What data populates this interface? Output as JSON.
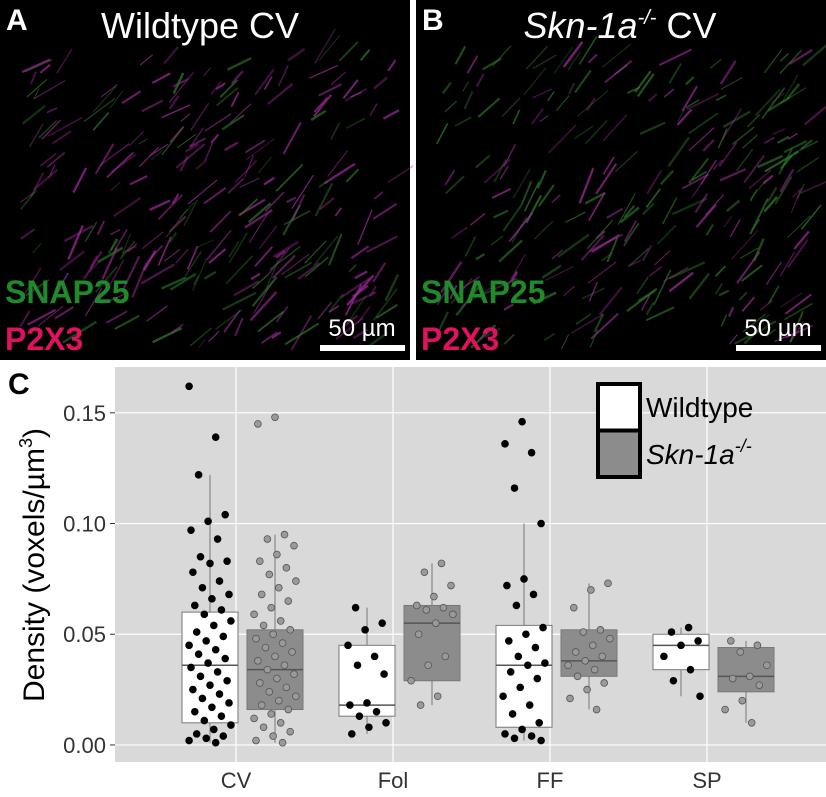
{
  "panels": [
    {
      "letter": "A",
      "title": "Wildtype CV",
      "marker1": "SNAP25",
      "marker2": "P2X3",
      "scale": "50 µm"
    },
    {
      "letter": "B",
      "title_italic": "Skn-1a",
      "title_sup": "-/-",
      "title_end": " CV",
      "marker1": "SNAP25",
      "marker2": "P2X3",
      "scale": "50 µm"
    }
  ],
  "chart_data": {
    "type": "box",
    "letter": "C",
    "y_label": "Density (voxels/µm",
    "y_label_sup": "3",
    "y_label_end": ")",
    "categories": [
      "CV",
      "Fol",
      "FF",
      "SP"
    ],
    "ylim": [
      -0.0077,
      0.1707
    ],
    "yticks": [
      {
        "value": 0,
        "label": "0.00"
      },
      0.05,
      {
        "value": 0.1,
        "label": "0.10"
      },
      0.15
    ],
    "grid": true,
    "legend": "top-right",
    "series": [
      {
        "name": "Wildtype",
        "color": "#ffffff",
        "point_color": "#000000",
        "boxes": [
          {
            "min": 0.001,
            "q1": 0.01,
            "median": 0.036,
            "q3": 0.06,
            "max": 0.122
          },
          {
            "min": 0.005,
            "q1": 0.013,
            "median": 0.018,
            "q3": 0.045,
            "max": 0.062
          },
          {
            "min": 0.002,
            "q1": 0.008,
            "median": 0.036,
            "q3": 0.054,
            "max": 0.1
          },
          {
            "min": 0.022,
            "q1": 0.034,
            "median": 0.045,
            "q3": 0.05,
            "max": 0.053
          }
        ],
        "points": [
          [
            0.162,
            0.139,
            0.122,
            0.104,
            0.101,
            0.097,
            0.093,
            0.085,
            0.083,
            0.082,
            0.078,
            0.074,
            0.071,
            0.068,
            0.066,
            0.063,
            0.061,
            0.059,
            0.056,
            0.054,
            0.051,
            0.049,
            0.047,
            0.045,
            0.043,
            0.041,
            0.039,
            0.037,
            0.035,
            0.033,
            0.031,
            0.029,
            0.027,
            0.025,
            0.023,
            0.021,
            0.019,
            0.017,
            0.015,
            0.013,
            0.011,
            0.009,
            0.007,
            0.005,
            0.004,
            0.003,
            0.002,
            0.001
          ],
          [
            0.062,
            0.055,
            0.052,
            0.045,
            0.04,
            0.036,
            0.032,
            0.019,
            0.018,
            0.015,
            0.013,
            0.01,
            0.008,
            0.005
          ],
          [
            0.146,
            0.136,
            0.132,
            0.116,
            0.1,
            0.075,
            0.072,
            0.068,
            0.063,
            0.053,
            0.05,
            0.047,
            0.044,
            0.04,
            0.037,
            0.036,
            0.033,
            0.03,
            0.026,
            0.022,
            0.018,
            0.014,
            0.01,
            0.007,
            0.005,
            0.004,
            0.003,
            0.002
          ],
          [
            0.053,
            0.051,
            0.047,
            0.045,
            0.04,
            0.034,
            0.029,
            0.022
          ]
        ]
      },
      {
        "name": "Skn-1a",
        "name_sup": "-/-",
        "color": "#8c8c8c",
        "point_color": "#9a9a9a",
        "boxes": [
          {
            "min": 0.001,
            "q1": 0.016,
            "median": 0.034,
            "q3": 0.052,
            "max": 0.095
          },
          {
            "min": 0.018,
            "q1": 0.029,
            "median": 0.055,
            "q3": 0.063,
            "max": 0.082
          },
          {
            "min": 0.016,
            "q1": 0.031,
            "median": 0.038,
            "q3": 0.052,
            "max": 0.073
          },
          {
            "min": 0.01,
            "q1": 0.024,
            "median": 0.031,
            "q3": 0.044,
            "max": 0.047
          }
        ],
        "points": [
          [
            0.148,
            0.145,
            0.095,
            0.093,
            0.09,
            0.086,
            0.083,
            0.08,
            0.077,
            0.074,
            0.071,
            0.068,
            0.065,
            0.062,
            0.059,
            0.056,
            0.054,
            0.052,
            0.05,
            0.048,
            0.046,
            0.044,
            0.042,
            0.04,
            0.038,
            0.036,
            0.034,
            0.032,
            0.03,
            0.028,
            0.026,
            0.024,
            0.022,
            0.02,
            0.018,
            0.016,
            0.014,
            0.012,
            0.01,
            0.008,
            0.006,
            0.004,
            0.002,
            0.001
          ],
          [
            0.082,
            0.078,
            0.072,
            0.067,
            0.063,
            0.062,
            0.061,
            0.059,
            0.055,
            0.05,
            0.04,
            0.036,
            0.029,
            0.022,
            0.018
          ],
          [
            0.073,
            0.07,
            0.062,
            0.052,
            0.051,
            0.048,
            0.045,
            0.042,
            0.04,
            0.038,
            0.036,
            0.034,
            0.031,
            0.028,
            0.025,
            0.021,
            0.016
          ],
          [
            0.047,
            0.045,
            0.042,
            0.036,
            0.031,
            0.03,
            0.027,
            0.02,
            0.016,
            0.01
          ]
        ]
      }
    ]
  }
}
